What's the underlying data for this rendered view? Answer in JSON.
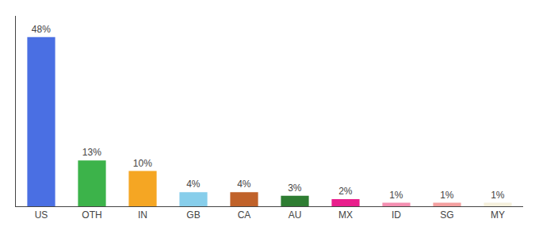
{
  "chart_data": {
    "type": "bar",
    "categories": [
      "US",
      "OTH",
      "IN",
      "GB",
      "CA",
      "AU",
      "MX",
      "ID",
      "SG",
      "MY"
    ],
    "values": [
      48,
      13,
      10,
      4,
      4,
      3,
      2,
      1,
      1,
      1
    ],
    "value_labels": [
      "48%",
      "13%",
      "10%",
      "4%",
      "4%",
      "3%",
      "2%",
      "1%",
      "1%",
      "1%"
    ],
    "colors": [
      "#4a6fe3",
      "#3cb34a",
      "#f5a623",
      "#87ceeb",
      "#c0622a",
      "#2e7d32",
      "#e91e8c",
      "#f48fb1",
      "#f4a0a0",
      "#f5f0dc"
    ],
    "ylim": [
      0,
      54
    ],
    "yticks": [],
    "grid": false,
    "data_labels": true,
    "tick_labels": "x"
  }
}
